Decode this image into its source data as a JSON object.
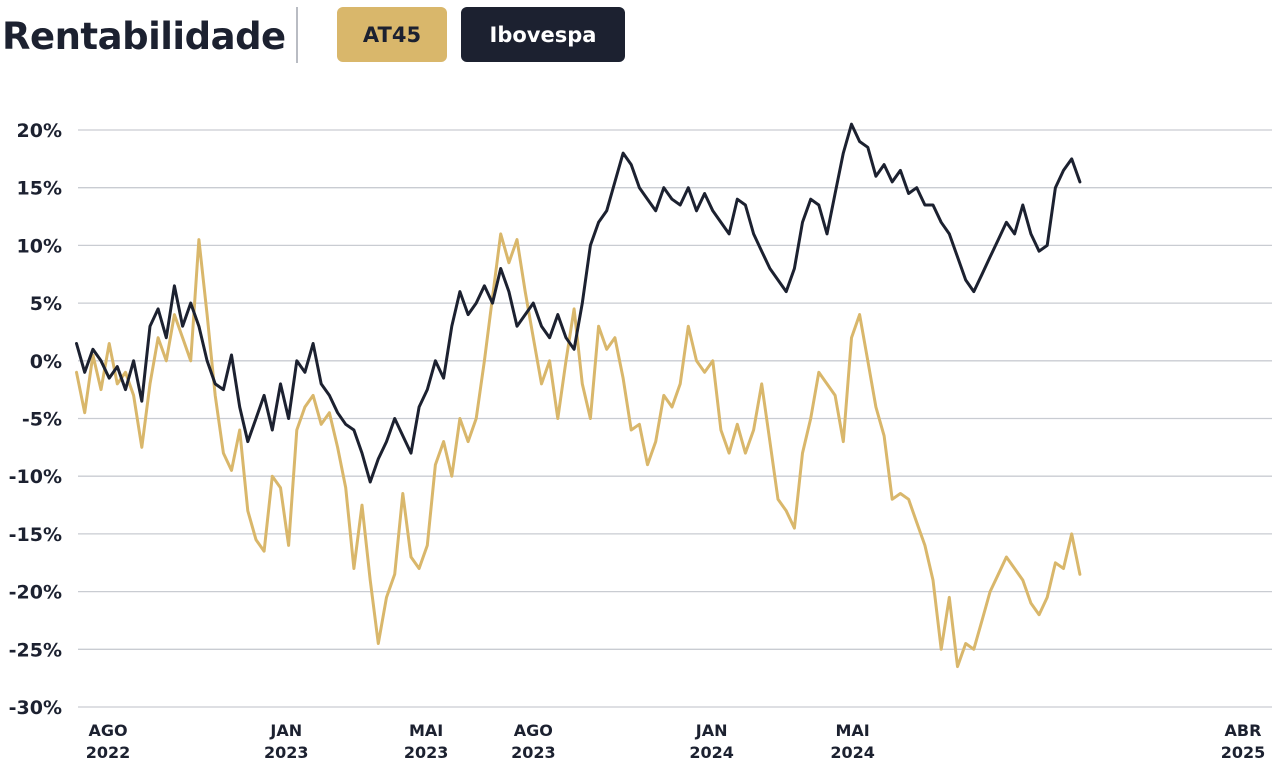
{
  "header": {
    "title": "Rentabilidade",
    "legend_buttons": [
      {
        "label": "AT45",
        "color": "#d9b76b"
      },
      {
        "label": "Ibovespa",
        "color": "#1c2130"
      }
    ]
  },
  "chart_data": {
    "type": "line",
    "title": "Rentabilidade",
    "xlabel": "",
    "ylabel": "",
    "ylim": [
      -30,
      20
    ],
    "grid": true,
    "legend_placement": "top",
    "y_ticks": [
      20,
      15,
      10,
      5,
      0,
      -5,
      -10,
      -15,
      -20,
      -25,
      -30
    ],
    "y_tick_labels": [
      "20%",
      "15%",
      "10%",
      "5%",
      "0%",
      "-5%",
      "-10%",
      "-15%",
      "-20%",
      "-25%",
      "-30%"
    ],
    "x_ticks": [
      {
        "date": "2022-08-01",
        "month": "AGO",
        "year": "2022"
      },
      {
        "date": "2023-01-01",
        "month": "JAN",
        "year": "2023"
      },
      {
        "date": "2023-05-01",
        "month": "MAI",
        "year": "2023"
      },
      {
        "date": "2023-08-01",
        "month": "AGO",
        "year": "2023"
      },
      {
        "date": "2024-01-01",
        "month": "JAN",
        "year": "2024"
      },
      {
        "date": "2024-05-01",
        "month": "MAI",
        "year": "2024"
      },
      {
        "date": "2025-04-01",
        "month": "ABR",
        "year": "2025"
      }
    ],
    "series": [
      {
        "name": "AT45",
        "color": "#d9b76b",
        "points": [
          [
            "2022-07-05",
            -1
          ],
          [
            "2022-07-12",
            -4.5
          ],
          [
            "2022-07-19",
            0.5
          ],
          [
            "2022-07-26",
            -2.5
          ],
          [
            "2022-08-02",
            1.5
          ],
          [
            "2022-08-09",
            -2
          ],
          [
            "2022-08-16",
            -1
          ],
          [
            "2022-08-23",
            -3
          ],
          [
            "2022-08-30",
            -7.5
          ],
          [
            "2022-09-06",
            -2
          ],
          [
            "2022-09-13",
            2
          ],
          [
            "2022-09-20",
            0
          ],
          [
            "2022-09-27",
            4
          ],
          [
            "2022-10-04",
            2
          ],
          [
            "2022-10-11",
            0
          ],
          [
            "2022-10-18",
            10.5
          ],
          [
            "2022-10-25",
            4
          ],
          [
            "2022-11-01",
            -3
          ],
          [
            "2022-11-08",
            -8
          ],
          [
            "2022-11-15",
            -9.5
          ],
          [
            "2022-11-22",
            -6
          ],
          [
            "2022-11-29",
            -13
          ],
          [
            "2022-12-06",
            -15.5
          ],
          [
            "2022-12-13",
            -16.5
          ],
          [
            "2022-12-20",
            -10
          ],
          [
            "2022-12-27",
            -11
          ],
          [
            "2023-01-03",
            -16
          ],
          [
            "2023-01-10",
            -6
          ],
          [
            "2023-01-17",
            -4
          ],
          [
            "2023-01-24",
            -3
          ],
          [
            "2023-01-31",
            -5.5
          ],
          [
            "2023-02-07",
            -4.5
          ],
          [
            "2023-02-14",
            -7.5
          ],
          [
            "2023-02-21",
            -11
          ],
          [
            "2023-02-28",
            -18
          ],
          [
            "2023-03-07",
            -12.5
          ],
          [
            "2023-03-14",
            -19
          ],
          [
            "2023-03-21",
            -24.5
          ],
          [
            "2023-03-28",
            -20.5
          ],
          [
            "2023-04-04",
            -18.5
          ],
          [
            "2023-04-11",
            -11.5
          ],
          [
            "2023-04-18",
            -17
          ],
          [
            "2023-04-25",
            -18
          ],
          [
            "2023-05-02",
            -16
          ],
          [
            "2023-05-09",
            -9
          ],
          [
            "2023-05-16",
            -7
          ],
          [
            "2023-05-23",
            -10
          ],
          [
            "2023-05-30",
            -5
          ],
          [
            "2023-06-06",
            -7
          ],
          [
            "2023-06-13",
            -5
          ],
          [
            "2023-06-20",
            0
          ],
          [
            "2023-06-27",
            5.5
          ],
          [
            "2023-07-04",
            11
          ],
          [
            "2023-07-11",
            8.5
          ],
          [
            "2023-07-18",
            10.5
          ],
          [
            "2023-07-25",
            6
          ],
          [
            "2023-08-01",
            2
          ],
          [
            "2023-08-08",
            -2
          ],
          [
            "2023-08-15",
            0
          ],
          [
            "2023-08-22",
            -5
          ],
          [
            "2023-08-29",
            0
          ],
          [
            "2023-09-05",
            4.5
          ],
          [
            "2023-09-12",
            -2
          ],
          [
            "2023-09-19",
            -5
          ],
          [
            "2023-09-26",
            3
          ],
          [
            "2023-10-03",
            1
          ],
          [
            "2023-10-10",
            2
          ],
          [
            "2023-10-17",
            -1.5
          ],
          [
            "2023-10-24",
            -6
          ],
          [
            "2023-10-31",
            -5.5
          ],
          [
            "2023-11-07",
            -9
          ],
          [
            "2023-11-14",
            -7
          ],
          [
            "2023-11-21",
            -3
          ],
          [
            "2023-11-28",
            -4
          ],
          [
            "2023-12-05",
            -2
          ],
          [
            "2023-12-12",
            3
          ],
          [
            "2023-12-19",
            0
          ],
          [
            "2023-12-26",
            -1
          ],
          [
            "2024-01-02",
            0
          ],
          [
            "2024-01-09",
            -6
          ],
          [
            "2024-01-16",
            -8
          ],
          [
            "2024-01-23",
            -5.5
          ],
          [
            "2024-01-30",
            -8
          ],
          [
            "2024-02-06",
            -6
          ],
          [
            "2024-02-13",
            -2
          ],
          [
            "2024-02-20",
            -7
          ],
          [
            "2024-02-27",
            -12
          ],
          [
            "2024-03-05",
            -13
          ],
          [
            "2024-03-12",
            -14.5
          ],
          [
            "2024-03-19",
            -8
          ],
          [
            "2024-03-26",
            -5
          ],
          [
            "2024-04-02",
            -1
          ],
          [
            "2024-04-09",
            -2
          ],
          [
            "2024-04-16",
            -3
          ],
          [
            "2024-04-23",
            -7
          ],
          [
            "2024-04-30",
            2
          ],
          [
            "2024-05-07",
            4
          ],
          [
            "2024-05-14",
            0
          ],
          [
            "2024-05-21",
            -4
          ],
          [
            "2024-05-28",
            -6.5
          ],
          [
            "2024-06-04",
            -12
          ],
          [
            "2024-06-11",
            -11.5
          ],
          [
            "2024-06-18",
            -12
          ],
          [
            "2024-06-25",
            -14
          ],
          [
            "2024-07-02",
            -16
          ],
          [
            "2024-07-09",
            -19
          ],
          [
            "2024-07-16",
            -25
          ],
          [
            "2024-07-23",
            -20.5
          ],
          [
            "2024-07-30",
            -26.5
          ],
          [
            "2024-08-06",
            -24.5
          ],
          [
            "2024-08-13",
            -25
          ],
          [
            "2024-08-20",
            -22.5
          ],
          [
            "2024-08-27",
            -20
          ],
          [
            "2024-09-03",
            -18.5
          ],
          [
            "2024-09-10",
            -17
          ],
          [
            "2024-09-17",
            -18
          ],
          [
            "2024-09-24",
            -19
          ],
          [
            "2024-10-01",
            -21
          ],
          [
            "2024-10-08",
            -22
          ],
          [
            "2024-10-15",
            -20.5
          ],
          [
            "2024-10-22",
            -17.5
          ],
          [
            "2024-10-29",
            -18
          ],
          [
            "2024-11-05",
            -15
          ],
          [
            "2024-11-12",
            -18.5
          ]
        ]
      },
      {
        "name": "Ibovespa",
        "color": "#1c2130",
        "points": [
          [
            "2022-07-05",
            1.5
          ],
          [
            "2022-07-12",
            -1
          ],
          [
            "2022-07-19",
            1
          ],
          [
            "2022-07-26",
            0
          ],
          [
            "2022-08-02",
            -1.5
          ],
          [
            "2022-08-09",
            -0.5
          ],
          [
            "2022-08-16",
            -2.5
          ],
          [
            "2022-08-23",
            0
          ],
          [
            "2022-08-30",
            -3.5
          ],
          [
            "2022-09-06",
            3
          ],
          [
            "2022-09-13",
            4.5
          ],
          [
            "2022-09-20",
            2
          ],
          [
            "2022-09-27",
            6.5
          ],
          [
            "2022-10-04",
            3
          ],
          [
            "2022-10-11",
            5
          ],
          [
            "2022-10-18",
            3
          ],
          [
            "2022-10-25",
            0
          ],
          [
            "2022-11-01",
            -2
          ],
          [
            "2022-11-08",
            -2.5
          ],
          [
            "2022-11-15",
            0.5
          ],
          [
            "2022-11-22",
            -4
          ],
          [
            "2022-11-29",
            -7
          ],
          [
            "2022-12-06",
            -5
          ],
          [
            "2022-12-13",
            -3
          ],
          [
            "2022-12-20",
            -6
          ],
          [
            "2022-12-27",
            -2
          ],
          [
            "2023-01-03",
            -5
          ],
          [
            "2023-01-10",
            0
          ],
          [
            "2023-01-17",
            -1
          ],
          [
            "2023-01-24",
            1.5
          ],
          [
            "2023-01-31",
            -2
          ],
          [
            "2023-02-07",
            -3
          ],
          [
            "2023-02-14",
            -4.5
          ],
          [
            "2023-02-21",
            -5.5
          ],
          [
            "2023-02-28",
            -6
          ],
          [
            "2023-03-07",
            -8
          ],
          [
            "2023-03-14",
            -10.5
          ],
          [
            "2023-03-21",
            -8.5
          ],
          [
            "2023-03-28",
            -7
          ],
          [
            "2023-04-04",
            -5
          ],
          [
            "2023-04-11",
            -6.5
          ],
          [
            "2023-04-18",
            -8
          ],
          [
            "2023-04-25",
            -4
          ],
          [
            "2023-05-02",
            -2.5
          ],
          [
            "2023-05-09",
            0
          ],
          [
            "2023-05-16",
            -1.5
          ],
          [
            "2023-05-23",
            3
          ],
          [
            "2023-05-30",
            6
          ],
          [
            "2023-06-06",
            4
          ],
          [
            "2023-06-13",
            5
          ],
          [
            "2023-06-20",
            6.5
          ],
          [
            "2023-06-27",
            5
          ],
          [
            "2023-07-04",
            8
          ],
          [
            "2023-07-11",
            6
          ],
          [
            "2023-07-18",
            3
          ],
          [
            "2023-07-25",
            4
          ],
          [
            "2023-08-01",
            5
          ],
          [
            "2023-08-08",
            3
          ],
          [
            "2023-08-15",
            2
          ],
          [
            "2023-08-22",
            4
          ],
          [
            "2023-08-29",
            2
          ],
          [
            "2023-09-05",
            1
          ],
          [
            "2023-09-12",
            5
          ],
          [
            "2023-09-19",
            10
          ],
          [
            "2023-09-26",
            12
          ],
          [
            "2023-10-03",
            13
          ],
          [
            "2023-10-10",
            15.5
          ],
          [
            "2023-10-17",
            18
          ],
          [
            "2023-10-24",
            17
          ],
          [
            "2023-10-31",
            15
          ],
          [
            "2023-11-07",
            14
          ],
          [
            "2023-11-14",
            13
          ],
          [
            "2023-11-21",
            15
          ],
          [
            "2023-11-28",
            14
          ],
          [
            "2023-12-05",
            13.5
          ],
          [
            "2023-12-12",
            15
          ],
          [
            "2023-12-19",
            13
          ],
          [
            "2023-12-26",
            14.5
          ],
          [
            "2024-01-02",
            13
          ],
          [
            "2024-01-09",
            12
          ],
          [
            "2024-01-16",
            11
          ],
          [
            "2024-01-23",
            14
          ],
          [
            "2024-01-30",
            13.5
          ],
          [
            "2024-02-06",
            11
          ],
          [
            "2024-02-13",
            9.5
          ],
          [
            "2024-02-20",
            8
          ],
          [
            "2024-02-27",
            7
          ],
          [
            "2024-03-05",
            6
          ],
          [
            "2024-03-12",
            8
          ],
          [
            "2024-03-19",
            12
          ],
          [
            "2024-03-26",
            14
          ],
          [
            "2024-04-02",
            13.5
          ],
          [
            "2024-04-09",
            11
          ],
          [
            "2024-04-16",
            14.5
          ],
          [
            "2024-04-23",
            18
          ],
          [
            "2024-04-30",
            20.5
          ],
          [
            "2024-05-07",
            19
          ],
          [
            "2024-05-14",
            18.5
          ],
          [
            "2024-05-21",
            16
          ],
          [
            "2024-05-28",
            17
          ],
          [
            "2024-06-04",
            15.5
          ],
          [
            "2024-06-11",
            16.5
          ],
          [
            "2024-06-18",
            14.5
          ],
          [
            "2024-06-25",
            15
          ],
          [
            "2024-07-02",
            13.5
          ],
          [
            "2024-07-09",
            13.5
          ],
          [
            "2024-07-16",
            12
          ],
          [
            "2024-07-23",
            11
          ],
          [
            "2024-07-30",
            9
          ],
          [
            "2024-08-06",
            7
          ],
          [
            "2024-08-13",
            6
          ],
          [
            "2024-08-20",
            7.5
          ],
          [
            "2024-08-27",
            9
          ],
          [
            "2024-09-03",
            10.5
          ],
          [
            "2024-09-10",
            12
          ],
          [
            "2024-09-17",
            11
          ],
          [
            "2024-09-24",
            13.5
          ],
          [
            "2024-10-01",
            11
          ],
          [
            "2024-10-08",
            9.5
          ],
          [
            "2024-10-15",
            10
          ],
          [
            "2024-10-22",
            15
          ],
          [
            "2024-10-29",
            16.5
          ],
          [
            "2024-11-05",
            17.5
          ],
          [
            "2024-11-12",
            15.5
          ]
        ]
      }
    ]
  }
}
